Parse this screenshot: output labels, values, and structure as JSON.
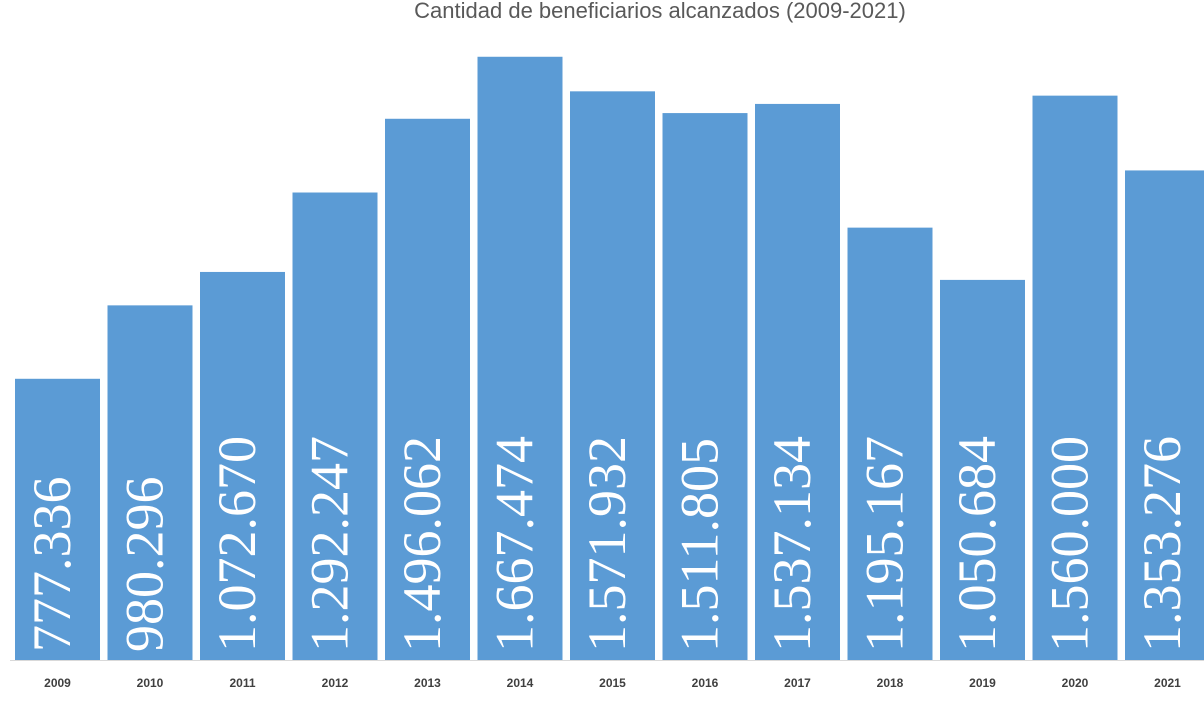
{
  "chart_data": {
    "type": "bar",
    "title": "Cantidad de beneficiarios alcanzados (2009-2021)",
    "categories": [
      "2009",
      "2010",
      "2011",
      "2012",
      "2013",
      "2014",
      "2015",
      "2016",
      "2017",
      "2018",
      "2019",
      "2020",
      "2021"
    ],
    "values": [
      777336,
      980296,
      1072670,
      1292247,
      1496062,
      1667474,
      1571932,
      1511805,
      1537134,
      1195167,
      1050684,
      1560000,
      1353276
    ],
    "value_labels": [
      "777.336",
      "980.296",
      "1.072.670",
      "1.292.247",
      "1.496.062",
      "1.667.474",
      "1.571.932",
      "1.511.805",
      "1.537.134",
      "1.195.167",
      "1.050.684",
      "1.560.000",
      "1.353.276"
    ],
    "color": "#5b9bd5",
    "ylim": [
      0,
      1700000
    ]
  }
}
